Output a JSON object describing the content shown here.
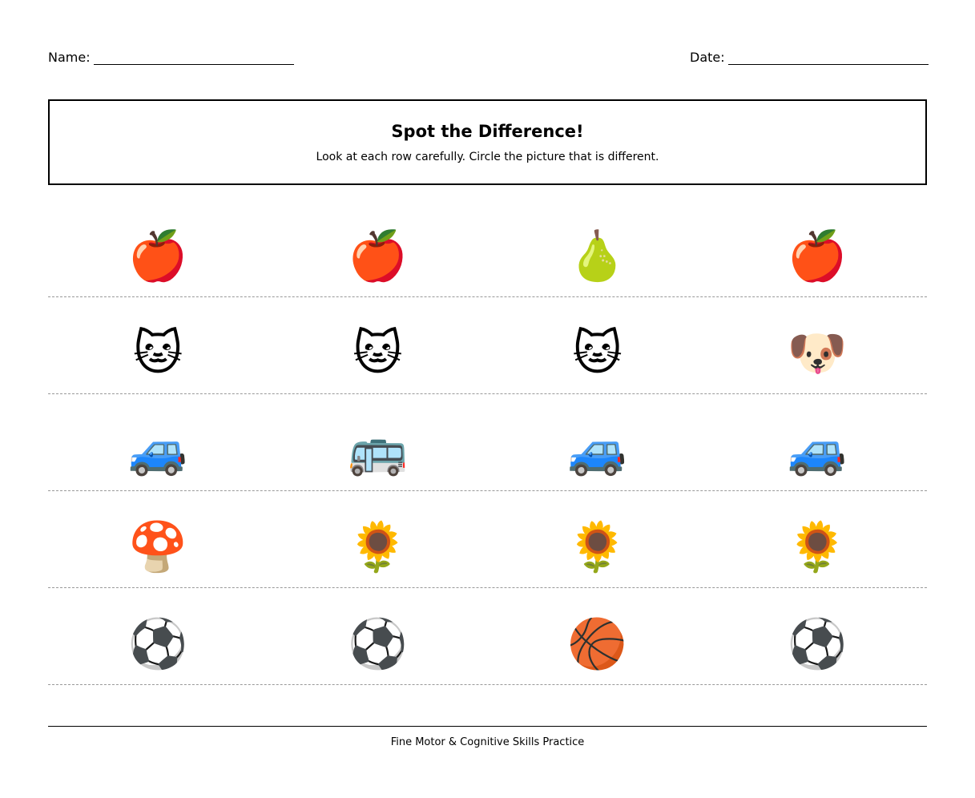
{
  "header": {
    "name_label": "Name:",
    "date_label": "Date:"
  },
  "title": "Spot the Difference!",
  "instructions": "Look at each row carefully. Circle the picture that is different.",
  "rows": [
    {
      "items": [
        "🍎",
        "🍎",
        "🍐",
        "🍎"
      ],
      "icons": [
        "apple-icon",
        "apple-icon",
        "pear-icon",
        "apple-icon"
      ]
    },
    {
      "items": [
        "🐱",
        "🐱",
        "🐱",
        "🐶"
      ],
      "icons": [
        "cat-icon",
        "cat-icon",
        "cat-icon",
        "dog-icon"
      ]
    },
    {
      "items": [
        "🚙",
        "🚌",
        "🚙",
        "🚙"
      ],
      "icons": [
        "suv-icon",
        "bus-icon",
        "suv-icon",
        "suv-icon"
      ]
    },
    {
      "items": [
        "🍄",
        "🌻",
        "🌻",
        "🌻"
      ],
      "icons": [
        "mushroom-icon",
        "sunflower-icon",
        "sunflower-icon",
        "sunflower-icon"
      ]
    },
    {
      "items": [
        "⚽",
        "⚽",
        "🏀",
        "⚽"
      ],
      "icons": [
        "soccer-ball-icon",
        "soccer-ball-icon",
        "basketball-icon",
        "soccer-ball-icon"
      ]
    }
  ],
  "footer": "Fine Motor & Cognitive Skills Practice"
}
